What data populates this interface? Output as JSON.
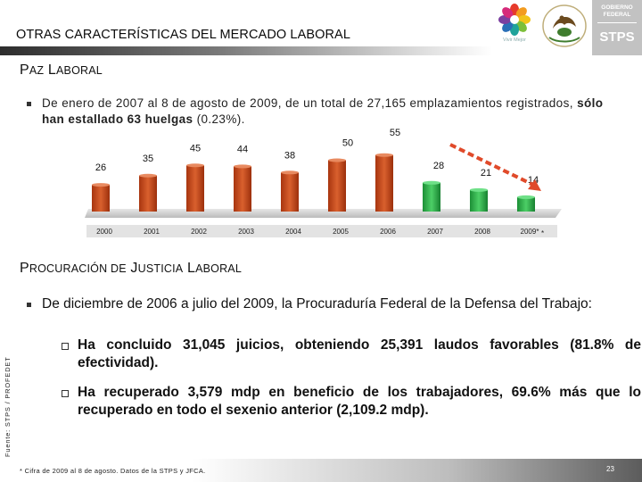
{
  "header": {
    "title": "OTRAS CARACTERÍSTICAS DEL MERCADO LABORAL",
    "vivamexico_text": "Vivir Mejor",
    "brand_gobierno_line1": "GOBIERNO",
    "brand_gobierno_line2": "FEDERAL",
    "brand_stps": "STPS"
  },
  "section_paz": {
    "title_cap1": "P",
    "title_rest1": "AZ",
    "title_cap2": "L",
    "title_rest2": "ABORAL",
    "text_pre": "De enero de 2007 al 8 de agosto de 2009, de un total de 27,165 emplazamientos registrados,",
    "text_bold": "sólo han estallado 63 huelgas",
    "text_post": "(0.23%)."
  },
  "chart_data": {
    "type": "bar",
    "categories": [
      "2000",
      "2001",
      "2002",
      "2003",
      "2004",
      "2005",
      "2006",
      "2007",
      "2008",
      "2009*"
    ],
    "values": [
      26,
      35,
      45,
      44,
      38,
      50,
      55,
      28,
      21,
      14
    ],
    "bar_colors": [
      "#c74a1c",
      "#c74a1c",
      "#c74a1c",
      "#c74a1c",
      "#c74a1c",
      "#c74a1c",
      "#c74a1c",
      "#2db34a",
      "#2db34a",
      "#2db34a"
    ],
    "asterisk": "*",
    "trend_arrow_color": "#e04a2a",
    "title": "",
    "xlabel": "",
    "ylabel": ""
  },
  "section_procuracion": {
    "title_cap1": "P",
    "title_rest1": "ROCURACIÓN DE",
    "title_cap2": "J",
    "title_rest2": "USTICIA",
    "title_cap3": "L",
    "title_rest3": "ABORAL",
    "bullet_text": "De diciembre de 2006 a julio del 2009, la Procuraduría Federal de la Defensa del Trabajo:",
    "sub1": "Ha concluido 31,045 juicios, obteniendo 25,391 laudos favorables (81.8% de efectividad).",
    "sub2": "Ha recuperado 3,579 mdp en beneficio de los trabajadores, 69.6% más que lo recuperado en todo el sexenio anterior (2,109.2 mdp)."
  },
  "source_text": "Fuente: STPS / PROFEDET",
  "footer": {
    "note": "* Cifra de 2009 al 8 de agosto. Datos de la STPS y JFCA.",
    "page": "23"
  }
}
